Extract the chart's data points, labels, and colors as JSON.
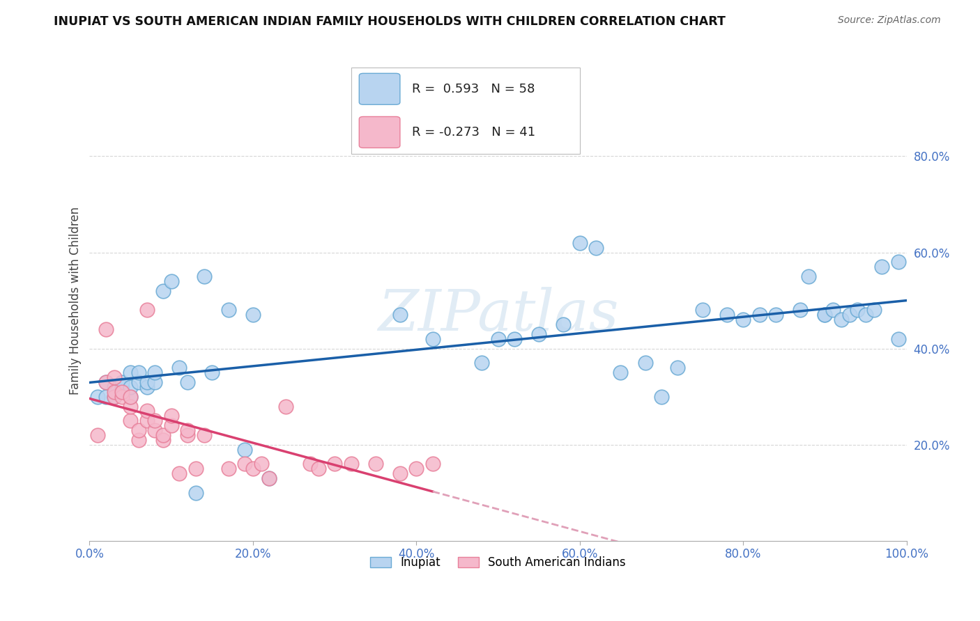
{
  "title": "INUPIAT VS SOUTH AMERICAN INDIAN FAMILY HOUSEHOLDS WITH CHILDREN CORRELATION CHART",
  "source": "Source: ZipAtlas.com",
  "ylabel": "Family Households with Children",
  "xlim": [
    0.0,
    1.0
  ],
  "ylim": [
    0.0,
    1.0
  ],
  "xticks": [
    0.0,
    0.2,
    0.4,
    0.6,
    0.8,
    1.0
  ],
  "yticks": [
    0.2,
    0.4,
    0.6,
    0.8
  ],
  "xtick_labels": [
    "0.0%",
    "20.0%",
    "40.0%",
    "60.0%",
    "80.0%",
    "100.0%"
  ],
  "ytick_labels": [
    "20.0%",
    "40.0%",
    "60.0%",
    "80.0%"
  ],
  "inupiat_color": "#b8d4f0",
  "inupiat_edge_color": "#6aaad4",
  "sa_indian_color": "#f5b8cb",
  "sa_indian_edge_color": "#e8809a",
  "trend_inupiat_color": "#1a5fa8",
  "trend_sa_color": "#d94070",
  "trend_sa_dashed_color": "#e0a0b8",
  "R_inupiat": 0.593,
  "N_inupiat": 58,
  "R_sa": -0.273,
  "N_sa": 41,
  "legend_label_inupiat": "Inupiat",
  "legend_label_sa": "South American Indians",
  "watermark": "ZIPatlas",
  "inupiat_x": [
    0.01,
    0.02,
    0.02,
    0.03,
    0.03,
    0.04,
    0.04,
    0.05,
    0.05,
    0.05,
    0.06,
    0.06,
    0.07,
    0.07,
    0.08,
    0.08,
    0.09,
    0.1,
    0.11,
    0.12,
    0.13,
    0.14,
    0.15,
    0.17,
    0.19,
    0.2,
    0.22,
    0.38,
    0.42,
    0.48,
    0.5,
    0.52,
    0.55,
    0.58,
    0.6,
    0.62,
    0.65,
    0.68,
    0.7,
    0.72,
    0.75,
    0.78,
    0.8,
    0.82,
    0.84,
    0.87,
    0.88,
    0.9,
    0.9,
    0.91,
    0.92,
    0.93,
    0.94,
    0.95,
    0.96,
    0.97,
    0.99,
    0.99
  ],
  "inupiat_y": [
    0.3,
    0.33,
    0.3,
    0.32,
    0.3,
    0.32,
    0.33,
    0.3,
    0.32,
    0.35,
    0.33,
    0.35,
    0.32,
    0.33,
    0.33,
    0.35,
    0.52,
    0.54,
    0.36,
    0.33,
    0.1,
    0.55,
    0.35,
    0.48,
    0.19,
    0.47,
    0.13,
    0.47,
    0.42,
    0.37,
    0.42,
    0.42,
    0.43,
    0.45,
    0.62,
    0.61,
    0.35,
    0.37,
    0.3,
    0.36,
    0.48,
    0.47,
    0.46,
    0.47,
    0.47,
    0.48,
    0.55,
    0.47,
    0.47,
    0.48,
    0.46,
    0.47,
    0.48,
    0.47,
    0.48,
    0.57,
    0.58,
    0.42
  ],
  "sa_x": [
    0.01,
    0.02,
    0.02,
    0.03,
    0.03,
    0.03,
    0.04,
    0.04,
    0.05,
    0.05,
    0.05,
    0.06,
    0.06,
    0.07,
    0.07,
    0.07,
    0.08,
    0.08,
    0.09,
    0.09,
    0.1,
    0.1,
    0.11,
    0.12,
    0.12,
    0.13,
    0.14,
    0.17,
    0.19,
    0.2,
    0.21,
    0.22,
    0.24,
    0.27,
    0.28,
    0.3,
    0.32,
    0.35,
    0.38,
    0.4,
    0.42
  ],
  "sa_y": [
    0.22,
    0.44,
    0.33,
    0.3,
    0.31,
    0.34,
    0.3,
    0.31,
    0.25,
    0.28,
    0.3,
    0.21,
    0.23,
    0.25,
    0.27,
    0.48,
    0.23,
    0.25,
    0.21,
    0.22,
    0.24,
    0.26,
    0.14,
    0.22,
    0.23,
    0.15,
    0.22,
    0.15,
    0.16,
    0.15,
    0.16,
    0.13,
    0.28,
    0.16,
    0.15,
    0.16,
    0.16,
    0.16,
    0.14,
    0.15,
    0.16
  ]
}
